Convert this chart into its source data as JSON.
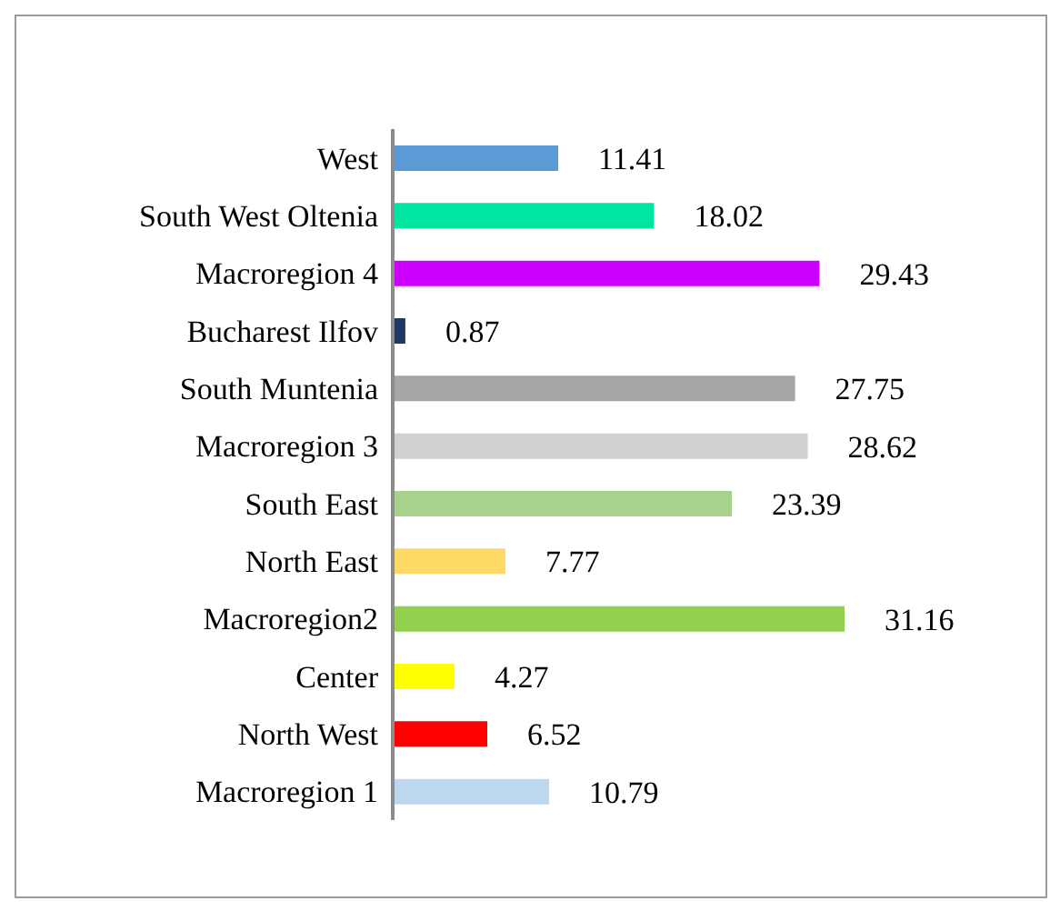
{
  "chart_data": {
    "type": "bar",
    "orientation": "horizontal",
    "categories": [
      "West",
      "South West Oltenia",
      "Macroregion 4",
      "Bucharest Ilfov",
      "South Muntenia",
      "Macroregion 3",
      "South East",
      "North East",
      "Macroregion2",
      "Center",
      "North West",
      "Macroregion 1"
    ],
    "values": [
      11.41,
      18.02,
      29.43,
      0.87,
      27.75,
      28.62,
      23.39,
      7.77,
      31.16,
      4.27,
      6.52,
      10.79
    ],
    "colors": [
      "#5b9bd5",
      "#00e6a0",
      "#cc00ff",
      "#1f3864",
      "#a6a6a6",
      "#d0d0d0",
      "#a9d18e",
      "#ffd966",
      "#92d050",
      "#ffff00",
      "#ff0000",
      "#bdd7ee"
    ],
    "data_labels": true,
    "tick_labels": "y"
  }
}
